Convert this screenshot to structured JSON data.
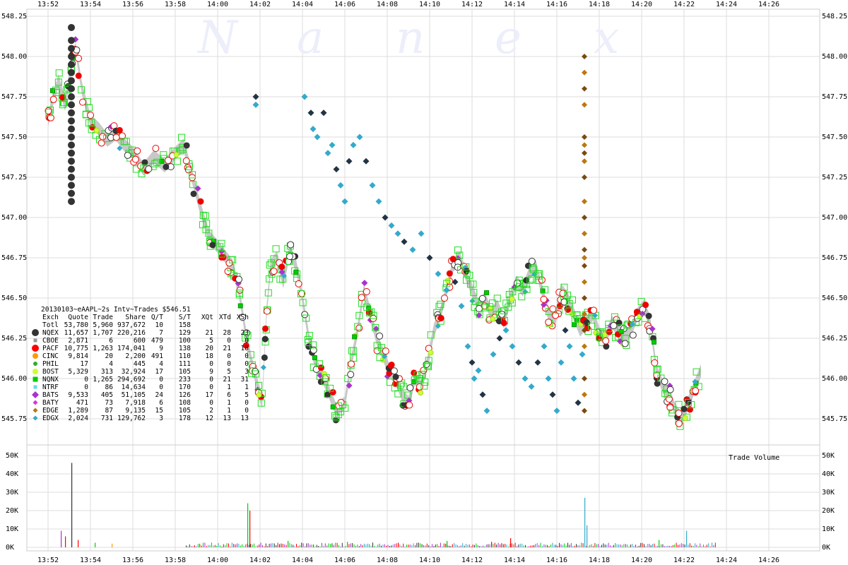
{
  "chart_data": {
    "type": "scatter",
    "watermark": [
      "N",
      "a",
      "n",
      "e",
      "x"
    ],
    "x_ticks": [
      "13:52",
      "13:54",
      "13:56",
      "13:58",
      "14:00",
      "14:02",
      "14:04",
      "14:06",
      "14:08",
      "14:10",
      "14:12",
      "14:14",
      "14:16",
      "14:18",
      "14:20",
      "14:22",
      "14:24",
      "14:26"
    ],
    "price_axis": {
      "ticks": [
        "548.25",
        "548.00",
        "547.75",
        "547.50",
        "547.25",
        "547.00",
        "546.75",
        "546.50",
        "546.25",
        "546.00",
        "545.75"
      ],
      "range": [
        545.625,
        548.25
      ]
    },
    "volume_axis": {
      "ticks": [
        "50K",
        "40K",
        "30K",
        "20K",
        "10K",
        "0K"
      ],
      "range": [
        0,
        50000
      ],
      "label": "Trade Volume"
    },
    "time_range": [
      "13:51",
      "14:28"
    ],
    "legend": {
      "title": "20130103~eAAPL~2s Intv~Trades $546.51",
      "headers": [
        "Exch",
        "Quote",
        "Trade",
        "Share",
        "Q/T",
        "S/T",
        "XQt",
        "XTd",
        "XSh"
      ],
      "rows": [
        {
          "exch": "Totl",
          "quote": "53,780",
          "trade": "5,960",
          "share": "937,672",
          "qt": "10",
          "st": "158",
          "xqt": "",
          "xtd": "",
          "xsh": "",
          "color": "",
          "marker": "none"
        },
        {
          "exch": "NQEX",
          "quote": "11,657",
          "trade": "1,707",
          "share": "220,216",
          "qt": "7",
          "st": "129",
          "xqt": "21",
          "xtd": "28",
          "xsh": "23",
          "color": "#333333",
          "marker": "circle-large"
        },
        {
          "exch": "CBOE",
          "quote": "2,871",
          "trade": "6",
          "share": "600",
          "qt": "479",
          "st": "100",
          "xqt": "5",
          "xtd": "0",
          "xsh": "0",
          "color": "#999999",
          "marker": "square-small"
        },
        {
          "exch": "PACF",
          "quote": "10,775",
          "trade": "1,263",
          "share": "174,041",
          "qt": "9",
          "st": "138",
          "xqt": "20",
          "xtd": "21",
          "xsh": "18",
          "color": "#ff0000",
          "marker": "circle-large"
        },
        {
          "exch": "CINC",
          "quote": "9,814",
          "trade": "20",
          "share": "2,200",
          "qt": "491",
          "st": "110",
          "xqt": "18",
          "xtd": "0",
          "xsh": "0",
          "color": "#ff9900",
          "marker": "circle"
        },
        {
          "exch": "PHIL",
          "quote": "17",
          "trade": "4",
          "share": "445",
          "qt": "4",
          "st": "111",
          "xqt": "0",
          "xtd": "0",
          "xsh": "0",
          "color": "#33aa33",
          "marker": "circle-small"
        },
        {
          "exch": "BOST",
          "quote": "5,329",
          "trade": "313",
          "share": "32,924",
          "qt": "17",
          "st": "105",
          "xqt": "9",
          "xtd": "5",
          "xsh": "3",
          "color": "#ccff33",
          "marker": "circle"
        },
        {
          "exch": "NQNX",
          "quote": "0",
          "trade": "1,265",
          "share": "294,692",
          "qt": "0",
          "st": "233",
          "xqt": "0",
          "xtd": "21",
          "xsh": "31",
          "color": "#00cc00",
          "marker": "square"
        },
        {
          "exch": "NTRF",
          "quote": "0",
          "trade": "86",
          "share": "14,634",
          "qt": "0",
          "st": "170",
          "xqt": "0",
          "xtd": "1",
          "xsh": "1",
          "color": "#66dddd",
          "marker": "square-small"
        },
        {
          "exch": "BATS",
          "quote": "9,533",
          "trade": "405",
          "share": "51,105",
          "qt": "24",
          "st": "126",
          "xqt": "17",
          "xtd": "6",
          "xsh": "5",
          "color": "#aa33cc",
          "marker": "diamond-large"
        },
        {
          "exch": "BATY",
          "quote": "471",
          "trade": "73",
          "share": "7,918",
          "qt": "6",
          "st": "108",
          "xqt": "0",
          "xtd": "1",
          "xsh": "0",
          "color": "#dd33dd",
          "marker": "diamond"
        },
        {
          "exch": "EDGE",
          "quote": "1,289",
          "trade": "87",
          "share": "9,135",
          "qt": "15",
          "st": "105",
          "xqt": "2",
          "xtd": "1",
          "xsh": "0",
          "color": "#bb7711",
          "marker": "diamond"
        },
        {
          "exch": "EDGX",
          "quote": "2,024",
          "trade": "731",
          "share": "129,762",
          "qt": "3",
          "st": "178",
          "xqt": "12",
          "xtd": "13",
          "xsh": "13",
          "color": "#33aacc",
          "marker": "diamond"
        }
      ]
    },
    "price_path": [
      [
        13.0,
        547.6
      ],
      [
        13.2,
        547.72
      ],
      [
        13.5,
        547.85
      ],
      [
        13.8,
        547.7
      ],
      [
        14.1,
        547.95
      ],
      [
        14.3,
        548.05
      ],
      [
        14.6,
        547.8
      ],
      [
        15.0,
        547.6
      ],
      [
        15.4,
        547.55
      ],
      [
        15.8,
        547.48
      ],
      [
        16.2,
        547.52
      ],
      [
        16.6,
        547.45
      ],
      [
        17.0,
        547.4
      ],
      [
        17.5,
        547.3
      ],
      [
        18.0,
        547.38
      ],
      [
        18.5,
        547.32
      ],
      [
        19.0,
        547.4
      ],
      [
        19.4,
        547.45
      ],
      [
        19.8,
        547.25
      ],
      [
        20.2,
        547.05
      ],
      [
        20.6,
        546.88
      ],
      [
        21.0,
        546.82
      ],
      [
        21.4,
        546.75
      ],
      [
        21.7,
        546.7
      ],
      [
        22.0,
        546.55
      ],
      [
        22.3,
        546.3
      ],
      [
        22.6,
        546.1
      ],
      [
        22.9,
        545.95
      ],
      [
        23.1,
        545.85
      ],
      [
        23.3,
        546.4
      ],
      [
        23.5,
        546.7
      ],
      [
        23.8,
        546.75
      ],
      [
        24.1,
        546.6
      ],
      [
        24.4,
        546.8
      ],
      [
        24.7,
        546.7
      ],
      [
        25.0,
        546.5
      ],
      [
        25.3,
        546.25
      ],
      [
        25.6,
        546.1
      ],
      [
        26.0,
        546.0
      ],
      [
        26.3,
        545.9
      ],
      [
        26.6,
        545.8
      ],
      [
        27.0,
        545.85
      ],
      [
        27.3,
        546.1
      ],
      [
        27.6,
        546.3
      ],
      [
        27.9,
        546.55
      ],
      [
        28.2,
        546.4
      ],
      [
        28.5,
        546.25
      ],
      [
        28.8,
        546.15
      ],
      [
        29.1,
        546.05
      ],
      [
        29.4,
        546.0
      ],
      [
        29.7,
        545.9
      ],
      [
        30.0,
        545.85
      ],
      [
        30.3,
        546.0
      ],
      [
        30.6,
        545.95
      ],
      [
        30.9,
        546.1
      ],
      [
        31.2,
        546.3
      ],
      [
        31.5,
        546.4
      ],
      [
        31.8,
        546.55
      ],
      [
        32.1,
        546.7
      ],
      [
        32.4,
        546.75
      ],
      [
        32.7,
        546.65
      ],
      [
        33.0,
        546.55
      ],
      [
        33.3,
        546.45
      ],
      [
        33.6,
        546.5
      ],
      [
        33.9,
        546.4
      ],
      [
        34.2,
        546.45
      ],
      [
        34.5,
        546.35
      ],
      [
        34.8,
        546.5
      ],
      [
        35.1,
        546.6
      ],
      [
        35.4,
        546.55
      ],
      [
        35.7,
        546.65
      ],
      [
        36.0,
        546.7
      ],
      [
        36.3,
        546.55
      ],
      [
        36.6,
        546.4
      ],
      [
        36.9,
        546.35
      ],
      [
        37.2,
        546.55
      ],
      [
        37.5,
        546.5
      ],
      [
        37.8,
        546.4
      ],
      [
        38.1,
        546.3
      ],
      [
        38.4,
        546.35
      ],
      [
        38.7,
        546.4
      ],
      [
        39.0,
        546.28
      ],
      [
        39.3,
        546.25
      ],
      [
        39.6,
        546.35
      ],
      [
        39.9,
        546.3
      ],
      [
        40.2,
        546.25
      ],
      [
        40.5,
        546.3
      ],
      [
        40.8,
        546.4
      ],
      [
        41.1,
        546.45
      ],
      [
        41.4,
        546.35
      ],
      [
        41.7,
        546.05
      ],
      [
        42.0,
        545.95
      ],
      [
        42.3,
        545.9
      ],
      [
        42.6,
        545.8
      ],
      [
        42.9,
        545.75
      ],
      [
        43.2,
        545.85
      ],
      [
        43.5,
        545.95
      ],
      [
        43.8,
        546.05
      ]
    ],
    "edgx_quotes": [
      [
        22.8,
        547.75
      ],
      [
        22.8,
        547.7
      ],
      [
        25.1,
        547.75
      ],
      [
        25.4,
        547.65
      ],
      [
        25.5,
        547.55
      ],
      [
        25.7,
        547.5
      ],
      [
        26.0,
        547.65
      ],
      [
        26.2,
        547.4
      ],
      [
        26.4,
        547.45
      ],
      [
        26.6,
        547.3
      ],
      [
        26.8,
        547.2
      ],
      [
        27.0,
        547.1
      ],
      [
        27.2,
        547.35
      ],
      [
        27.4,
        547.45
      ],
      [
        27.7,
        547.5
      ],
      [
        28.0,
        547.35
      ],
      [
        28.3,
        547.2
      ],
      [
        28.6,
        547.1
      ],
      [
        28.9,
        547.0
      ],
      [
        29.2,
        546.95
      ],
      [
        29.5,
        546.9
      ],
      [
        29.8,
        546.85
      ],
      [
        30.2,
        546.8
      ],
      [
        30.6,
        546.9
      ],
      [
        31.0,
        546.75
      ],
      [
        31.4,
        546.65
      ],
      [
        31.8,
        546.55
      ],
      [
        32.2,
        546.6
      ],
      [
        32.5,
        546.45
      ],
      [
        32.8,
        546.2
      ],
      [
        33.0,
        546.1
      ],
      [
        33.1,
        546.0
      ],
      [
        33.3,
        546.05
      ],
      [
        33.5,
        545.9
      ],
      [
        33.7,
        545.8
      ],
      [
        34.0,
        546.15
      ],
      [
        34.3,
        546.25
      ],
      [
        34.6,
        546.3
      ],
      [
        34.9,
        546.2
      ],
      [
        35.2,
        546.1
      ],
      [
        35.5,
        546.0
      ],
      [
        35.8,
        545.95
      ],
      [
        36.1,
        546.1
      ],
      [
        36.4,
        546.2
      ],
      [
        36.6,
        546.0
      ],
      [
        36.8,
        545.9
      ],
      [
        37.0,
        545.8
      ],
      [
        37.2,
        546.1
      ],
      [
        37.4,
        546.3
      ],
      [
        37.6,
        546.2
      ],
      [
        37.8,
        546.0
      ],
      [
        38.0,
        545.85
      ],
      [
        38.2,
        546.15
      ]
    ],
    "edge_spike": [
      [
        38.3,
        548.0
      ],
      [
        38.3,
        547.9
      ],
      [
        38.3,
        547.8
      ],
      [
        38.3,
        547.7
      ],
      [
        38.3,
        547.5
      ],
      [
        38.3,
        547.45
      ],
      [
        38.3,
        547.4
      ],
      [
        38.3,
        547.35
      ],
      [
        38.3,
        547.25
      ],
      [
        38.3,
        547.1
      ],
      [
        38.3,
        547.0
      ],
      [
        38.3,
        546.9
      ],
      [
        38.3,
        546.8
      ],
      [
        38.3,
        546.75
      ],
      [
        38.3,
        546.7
      ],
      [
        38.3,
        546.6
      ],
      [
        38.3,
        546.5
      ],
      [
        38.3,
        546.4
      ],
      [
        38.3,
        546.3
      ],
      [
        38.3,
        546.2
      ],
      [
        38.3,
        546.0
      ],
      [
        38.3,
        545.9
      ],
      [
        38.3,
        545.8
      ]
    ],
    "black_cluster_13_54": [
      [
        14.1,
        548.18
      ],
      [
        14.1,
        548.1
      ],
      [
        14.1,
        548.05
      ],
      [
        14.1,
        548.0
      ],
      [
        14.1,
        547.95
      ],
      [
        14.1,
        547.9
      ],
      [
        14.1,
        547.85
      ],
      [
        14.1,
        547.8
      ],
      [
        14.1,
        547.75
      ],
      [
        14.1,
        547.7
      ],
      [
        14.1,
        547.65
      ],
      [
        14.1,
        547.6
      ],
      [
        14.1,
        547.55
      ],
      [
        14.1,
        547.5
      ],
      [
        14.1,
        547.45
      ],
      [
        14.1,
        547.4
      ],
      [
        14.1,
        547.35
      ],
      [
        14.1,
        547.3
      ],
      [
        14.1,
        547.25
      ],
      [
        14.1,
        547.2
      ],
      [
        14.1,
        547.15
      ],
      [
        14.1,
        547.1
      ]
    ],
    "volume_spikes": [
      [
        13.6,
        9000,
        "#aa33cc"
      ],
      [
        13.8,
        6000,
        "#ff0000"
      ],
      [
        14.1,
        46000,
        "#333333"
      ],
      [
        14.4,
        4000,
        "#ff0000"
      ],
      [
        15.2,
        2500,
        "#00cc00"
      ],
      [
        16.0,
        2000,
        "#ff9900"
      ],
      [
        22.4,
        24000,
        "#00cc00"
      ],
      [
        22.5,
        20000,
        "#ff0000"
      ],
      [
        24.3,
        3500,
        "#00cc00"
      ],
      [
        27.1,
        3000,
        "#00cc00"
      ],
      [
        29.5,
        2500,
        "#ff0000"
      ],
      [
        31.8,
        3500,
        "#00cc00"
      ],
      [
        33.9,
        3000,
        "#ff0000"
      ],
      [
        34.8,
        5000,
        "#ff0000"
      ],
      [
        38.3,
        27000,
        "#33aacc"
      ],
      [
        38.4,
        12000,
        "#33aacc"
      ],
      [
        41.8,
        4000,
        "#00cc00"
      ],
      [
        43.1,
        9000,
        "#33aacc"
      ]
    ]
  }
}
